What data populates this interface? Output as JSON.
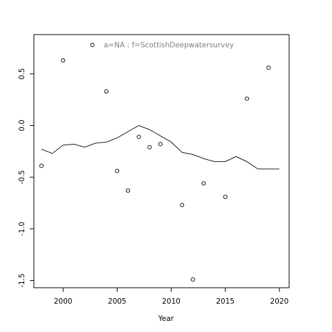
{
  "chart_data": {
    "type": "scatter",
    "title": "",
    "xlabel": "Year",
    "ylabel": "",
    "xlim": [
      1997.3,
      2020.9
    ],
    "ylim": [
      -1.57,
      0.88
    ],
    "x_ticks": [
      2000,
      2005,
      2010,
      2015,
      2020
    ],
    "x_tick_labels": [
      "2000",
      "2005",
      "2010",
      "2015",
      "2020"
    ],
    "y_ticks": [
      -1.5,
      -1.0,
      -0.5,
      0.0,
      0.5
    ],
    "y_tick_labels": [
      "-1.5",
      "-1.0",
      "-0.5",
      "0.0",
      "0.5"
    ],
    "grid": false,
    "legend": {
      "placement": "top",
      "entries": [
        {
          "marker": "open-circle",
          "label": "a=NA  :  f=ScottishDeepwatersurvey"
        }
      ]
    },
    "colors": {
      "points": "#000000",
      "line": "#000000",
      "legend_text": "#808080"
    },
    "points": {
      "x": [
        1998,
        2000,
        2004,
        2005,
        2006,
        2007,
        2008,
        2009,
        2011,
        2012,
        2013,
        2015,
        2017,
        2019
      ],
      "y": [
        -0.39,
        0.63,
        0.33,
        -0.44,
        -0.63,
        -0.11,
        -0.21,
        -0.18,
        -0.77,
        -1.49,
        -0.56,
        -0.69,
        0.26,
        0.56
      ]
    },
    "line": {
      "x": [
        1998,
        1999,
        2000,
        2001,
        2002,
        2003,
        2004,
        2005,
        2006,
        2007,
        2008,
        2009,
        2010,
        2011,
        2012,
        2013,
        2014,
        2015,
        2016,
        2017,
        2018,
        2019,
        2020
      ],
      "y": [
        -0.23,
        -0.27,
        -0.19,
        -0.18,
        -0.21,
        -0.17,
        -0.16,
        -0.12,
        -0.06,
        0.0,
        -0.04,
        -0.1,
        -0.16,
        -0.26,
        -0.28,
        -0.32,
        -0.35,
        -0.35,
        -0.3,
        -0.35,
        -0.42,
        -0.42,
        -0.42
      ]
    }
  }
}
